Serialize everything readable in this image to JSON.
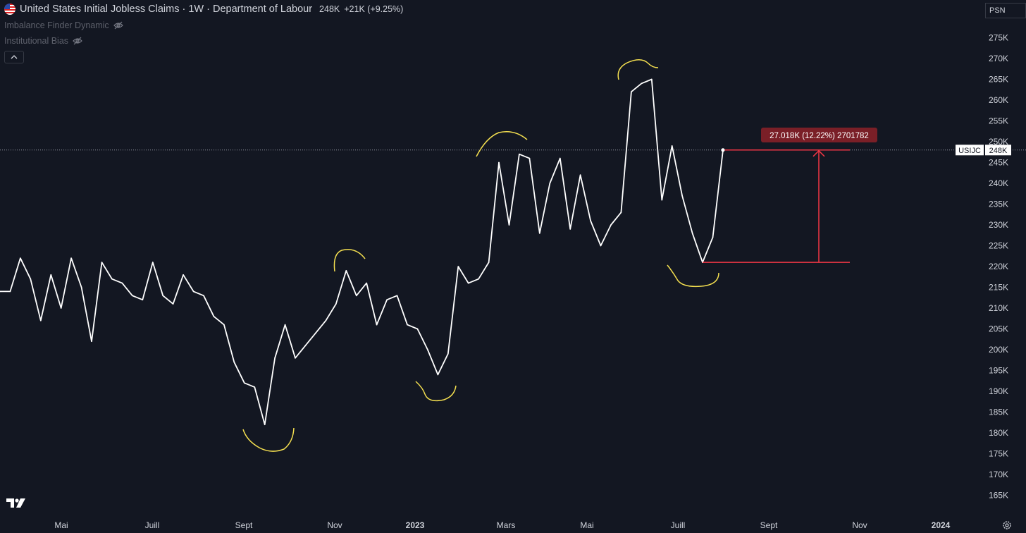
{
  "header": {
    "title": "United States Initial Jobless Claims · 1W · Department of Labour",
    "last_value": "248K",
    "change": "+21K (+9.25%)"
  },
  "indicators": [
    {
      "label": "Imbalance Finder Dynamic",
      "icon": "eye-off-icon"
    },
    {
      "label": "Institutional Bias",
      "icon": "eye-off-icon"
    }
  ],
  "psn_label": "PSN",
  "symbol_tag": "USIJC",
  "price_tag": "248K",
  "measure_label": "27.018K (12.22%) 2701782",
  "colors": {
    "background": "#131722",
    "line": "#ffffff",
    "annotation": "#f5e050",
    "measure": "#f23645",
    "measure_label_bg": "#7a1f27"
  },
  "chart_data": {
    "type": "line",
    "title": "United States Initial Jobless Claims",
    "y_axis_ticks": [
      "275K",
      "270K",
      "265K",
      "260K",
      "255K",
      "250K",
      "245K",
      "240K",
      "235K",
      "230K",
      "225K",
      "220K",
      "215K",
      "210K",
      "205K",
      "200K",
      "195K",
      "190K",
      "185K",
      "180K",
      "175K",
      "170K",
      "165K"
    ],
    "x_axis_ticks": [
      "Mai",
      "Juill",
      "Sept",
      "Nov",
      "2023",
      "Mars",
      "Mai",
      "Juill",
      "Sept",
      "Nov",
      "2024"
    ],
    "ylim": [
      162,
      278
    ],
    "grid": false,
    "series": [
      {
        "values": [
          214,
          214,
          222,
          217,
          207,
          218,
          210,
          222,
          215,
          202,
          221,
          217,
          216,
          213,
          212,
          221,
          213,
          211,
          218,
          214,
          213,
          208,
          206,
          197,
          192,
          191,
          182,
          198,
          206,
          198,
          201,
          204,
          207,
          211,
          219,
          213,
          216,
          206,
          212,
          213,
          206,
          205,
          200,
          194,
          199,
          220,
          216,
          217,
          221,
          245,
          230,
          247,
          246,
          228,
          240,
          246,
          229,
          242,
          231,
          225,
          230,
          233,
          262,
          264,
          265,
          236,
          249,
          237,
          228,
          221,
          227,
          248
        ],
        "x_dates": [
          "2022-03-05",
          "2022-03-12",
          "2022-03-19",
          "2022-03-26",
          "2022-04-02",
          "2022-04-09",
          "2022-04-16",
          "2022-04-23",
          "2022-04-30",
          "2022-05-07",
          "2022-05-14",
          "2022-05-21",
          "2022-05-28",
          "2022-06-04",
          "2022-06-11",
          "2022-06-18",
          "2022-06-25",
          "2022-07-02",
          "2022-07-09",
          "2022-07-16",
          "2022-07-23",
          "2022-07-30",
          "2022-08-06",
          "2022-08-13",
          "2022-08-20",
          "2022-08-27",
          "2022-09-03",
          "2022-09-10",
          "2022-09-17",
          "2022-09-24",
          "2022-10-01",
          "2022-10-08",
          "2022-10-15",
          "2022-10-22",
          "2022-10-29",
          "2022-11-05",
          "2022-11-12",
          "2022-11-19",
          "2022-11-26",
          "2022-12-03",
          "2022-12-10",
          "2022-12-17",
          "2022-12-24",
          "2022-12-31",
          "2023-01-07",
          "2023-01-14",
          "2023-01-21",
          "2023-01-28",
          "2023-02-04",
          "2023-02-11",
          "2023-02-18",
          "2023-02-25",
          "2023-03-04",
          "2023-03-11",
          "2023-03-18",
          "2023-03-25",
          "2023-04-01",
          "2023-04-08",
          "2023-04-15",
          "2023-04-22",
          "2023-04-29",
          "2023-05-06",
          "2023-05-13",
          "2023-05-20",
          "2023-05-27",
          "2023-06-03",
          "2023-06-10",
          "2023-06-17",
          "2023-06-24",
          "2023-07-01",
          "2023-07-08",
          "2023-07-15"
        ]
      }
    ],
    "current_value": 248,
    "measure": {
      "from": 221,
      "to": 248
    }
  }
}
